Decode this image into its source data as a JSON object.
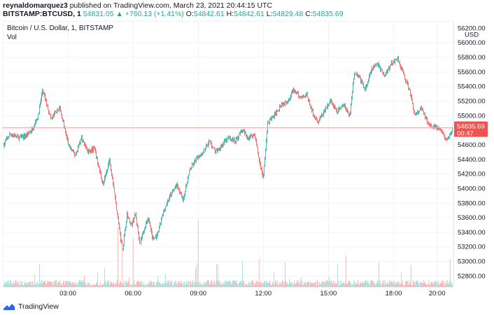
{
  "header": {
    "author": "reynaldomarquez3",
    "published_text": "published on TradingView.com, March 23, 2021 20:44:15 UTC",
    "symbol": "BITSTAMP:BTCUSD, 1",
    "last_price": "54831.05",
    "change_arrow": "▲",
    "change": "+760.13 (+1.41%)",
    "open_label": "O:",
    "open": "54842.61",
    "high_label": "H:",
    "high": "54842.61",
    "low_label": "L:",
    "low": "54829.48",
    "close_label": "C:",
    "close": "54835.69"
  },
  "legend": {
    "title": "Bitcoin / U.S. Dollar, 1, BITSTAMP",
    "vol": "Vol"
  },
  "price_tag": {
    "price": "54835.69",
    "countdown": "00:47"
  },
  "footer": {
    "brand": "TradingView"
  },
  "colors": {
    "up": "#26a69a",
    "down": "#ef5350",
    "vol_up": "#b2dfdb",
    "vol_down": "#f8bbbb",
    "tag": "#ef5350",
    "grid": "#f0f3fa",
    "brand": "#2962ff"
  },
  "chart_data": {
    "type": "candlestick",
    "currency": "USD",
    "ylim": [
      52650,
      56300
    ],
    "y_ticks": [
      "56000.00",
      "55800.00",
      "55600.00",
      "55400.00",
      "55200.00",
      "55000.00",
      "54800.00",
      "54600.00",
      "54400.00",
      "54200.00",
      "54000.00",
      "53800.00",
      "53600.00",
      "53400.00",
      "53200.00",
      "53000.00",
      "52800.00"
    ],
    "y_tick_values": [
      56000,
      55800,
      55600,
      55400,
      55200,
      55000,
      54800,
      54600,
      54400,
      54200,
      54000,
      53800,
      53600,
      53400,
      53200,
      53000,
      52800
    ],
    "top_partial_tick": "56200.00",
    "x_ticks": [
      "03:00",
      "06:00",
      "09:00",
      "12:00",
      "15:00",
      "18:00",
      "20:00"
    ],
    "x_tick_hours": [
      3,
      6,
      9,
      12,
      15,
      18,
      20
    ],
    "x_range_hours": [
      0,
      20.75
    ],
    "last_price_line": 54835.69,
    "price_path": [
      [
        0.0,
        54600
      ],
      [
        0.3,
        54750
      ],
      [
        0.7,
        54700
      ],
      [
        1.0,
        54720
      ],
      [
        1.3,
        54800
      ],
      [
        1.6,
        55000
      ],
      [
        1.8,
        55350
      ],
      [
        2.0,
        55150
      ],
      [
        2.2,
        54950
      ],
      [
        2.4,
        55050
      ],
      [
        2.6,
        55100
      ],
      [
        2.8,
        54850
      ],
      [
        3.0,
        54600
      ],
      [
        3.3,
        54450
      ],
      [
        3.6,
        54700
      ],
      [
        3.9,
        54500
      ],
      [
        4.2,
        54550
      ],
      [
        4.4,
        54300
      ],
      [
        4.6,
        54050
      ],
      [
        4.9,
        54400
      ],
      [
        5.1,
        54000
      ],
      [
        5.3,
        53550
      ],
      [
        5.5,
        53150
      ],
      [
        5.7,
        53650
      ],
      [
        5.9,
        53500
      ],
      [
        6.1,
        53650
      ],
      [
        6.3,
        53250
      ],
      [
        6.5,
        53450
      ],
      [
        6.7,
        53600
      ],
      [
        6.9,
        53300
      ],
      [
        7.1,
        53350
      ],
      [
        7.4,
        53700
      ],
      [
        7.7,
        53900
      ],
      [
        8.0,
        54050
      ],
      [
        8.3,
        53850
      ],
      [
        8.6,
        54250
      ],
      [
        8.9,
        54400
      ],
      [
        9.2,
        54500
      ],
      [
        9.5,
        54650
      ],
      [
        9.8,
        54500
      ],
      [
        10.1,
        54600
      ],
      [
        10.4,
        54700
      ],
      [
        10.7,
        54650
      ],
      [
        11.0,
        54800
      ],
      [
        11.3,
        54700
      ],
      [
        11.6,
        54750
      ],
      [
        11.8,
        54400
      ],
      [
        12.0,
        54150
      ],
      [
        12.2,
        54900
      ],
      [
        12.5,
        55000
      ],
      [
        12.8,
        55150
      ],
      [
        13.1,
        55200
      ],
      [
        13.4,
        55350
      ],
      [
        13.7,
        55250
      ],
      [
        14.0,
        55300
      ],
      [
        14.2,
        55100
      ],
      [
        14.5,
        54900
      ],
      [
        14.8,
        55050
      ],
      [
        15.1,
        55200
      ],
      [
        15.4,
        55050
      ],
      [
        15.7,
        55150
      ],
      [
        16.0,
        55000
      ],
      [
        16.2,
        55600
      ],
      [
        16.4,
        55550
      ],
      [
        16.7,
        55350
      ],
      [
        17.0,
        55650
      ],
      [
        17.3,
        55700
      ],
      [
        17.6,
        55550
      ],
      [
        17.9,
        55700
      ],
      [
        18.2,
        55800
      ],
      [
        18.5,
        55550
      ],
      [
        18.8,
        55300
      ],
      [
        19.0,
        55000
      ],
      [
        19.3,
        55100
      ],
      [
        19.6,
        54900
      ],
      [
        19.9,
        54850
      ],
      [
        20.2,
        54800
      ],
      [
        20.5,
        54650
      ],
      [
        20.75,
        54835
      ]
    ]
  }
}
